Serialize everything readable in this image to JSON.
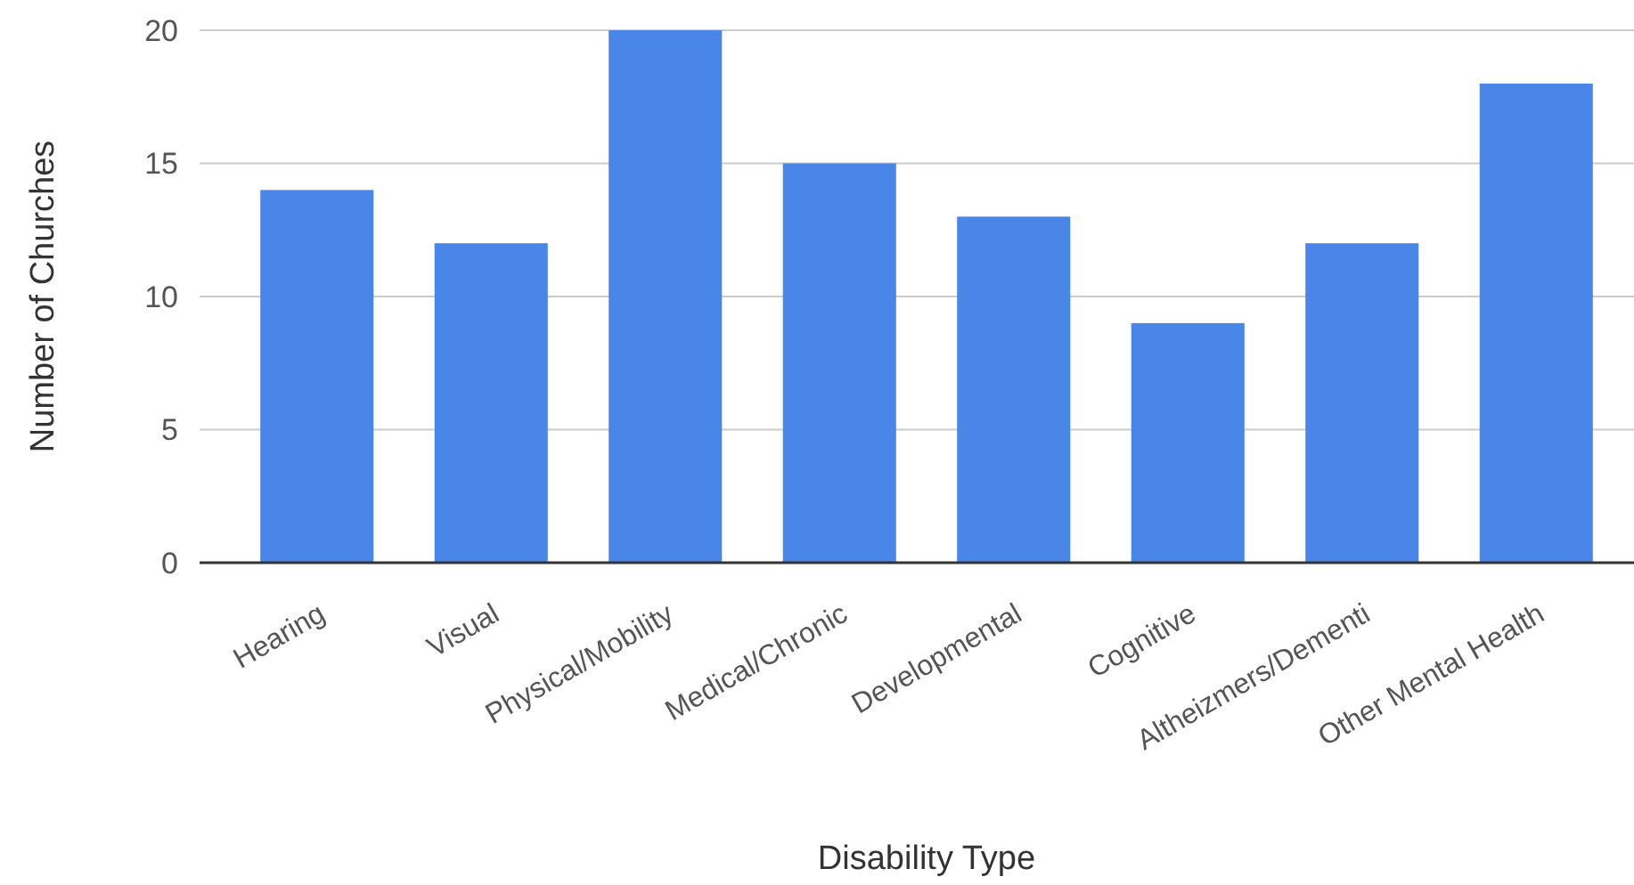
{
  "chart_data": {
    "type": "bar",
    "xlabel": "Disability Type",
    "ylabel": "Number of Churches",
    "categories": [
      "Hearing",
      "Visual",
      "Physical/Mobility",
      "Medical/Chronic",
      "Developmental",
      "Cognitive",
      "Altheizmers/Dementi",
      "Other Mental Health"
    ],
    "values": [
      14,
      12,
      20,
      15,
      13,
      9,
      12,
      18
    ],
    "color": "#4a86e8",
    "ylim": [
      0,
      20
    ],
    "yticks": [
      0,
      5,
      10,
      15,
      20
    ],
    "grid": "y"
  }
}
